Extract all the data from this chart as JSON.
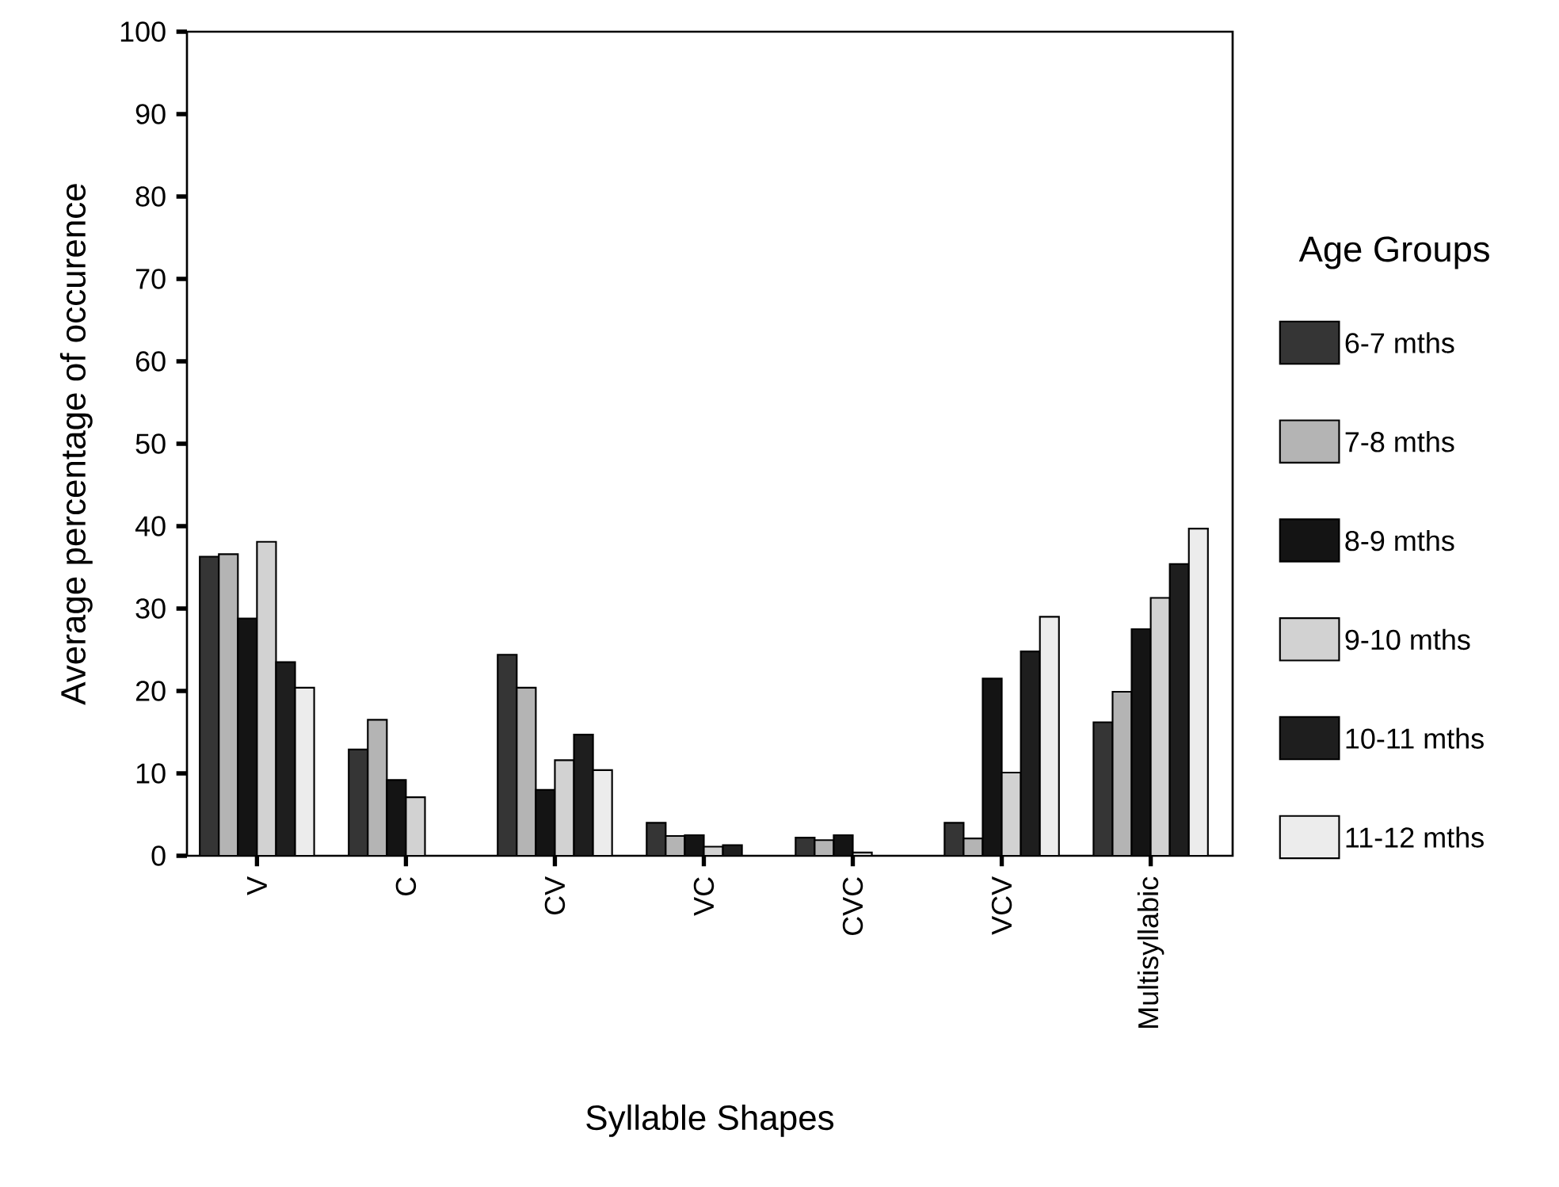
{
  "chart_data": {
    "type": "bar",
    "xlabel": "Syllable Shapes",
    "ylabel": "Average percentage of occurence",
    "legend_title": "Age Groups",
    "legend": "right",
    "categories": [
      "V",
      "C",
      "CV",
      "VC",
      "CVC",
      "VCV",
      "Multisyllabic"
    ],
    "ylim": [
      0,
      100
    ],
    "yticks": [
      0,
      10,
      20,
      30,
      40,
      50,
      60,
      70,
      80,
      90,
      100
    ],
    "series": [
      {
        "name": "6-7 mths",
        "color": "#353535",
        "values": [
          36.3,
          12.9,
          24.4,
          4.0,
          2.2,
          4.0,
          16.2
        ]
      },
      {
        "name": "7-8 mths",
        "color": "#b4b4b4",
        "values": [
          36.6,
          16.5,
          20.4,
          2.4,
          1.9,
          2.1,
          19.9
        ]
      },
      {
        "name": "8-9 mths",
        "color": "#141414",
        "values": [
          28.8,
          9.2,
          8.0,
          2.5,
          2.5,
          21.5,
          27.5
        ]
      },
      {
        "name": "9-10 mths",
        "color": "#d2d2d2",
        "values": [
          38.1,
          7.1,
          11.6,
          1.1,
          0.4,
          10.1,
          31.3
        ]
      },
      {
        "name": "10-11 mths",
        "color": "#1e1e1e",
        "values": [
          23.5,
          null,
          14.7,
          1.3,
          null,
          24.8,
          35.4
        ]
      },
      {
        "name": "11-12 mths",
        "color": "#ececec",
        "values": [
          20.4,
          null,
          10.4,
          null,
          null,
          29.0,
          39.7
        ]
      }
    ]
  }
}
